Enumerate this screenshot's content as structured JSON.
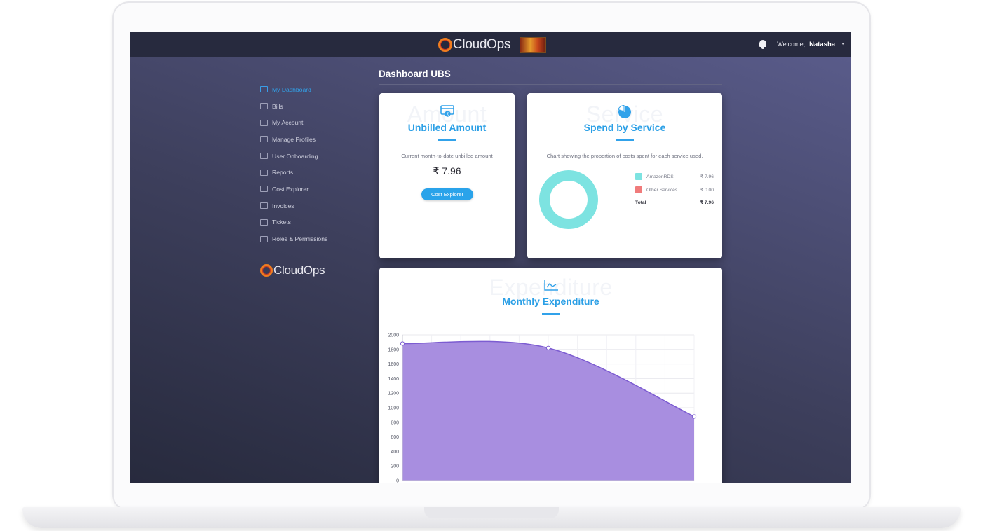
{
  "header": {
    "brand": "CloudOps",
    "welcome_prefix": "Welcome,",
    "user_name": "Natasha"
  },
  "sidebar": {
    "items": [
      {
        "label": "My Dashboard",
        "icon": "dashboard-icon",
        "active": true
      },
      {
        "label": "Bills",
        "icon": "bills-icon"
      },
      {
        "label": "My Account",
        "icon": "user-icon"
      },
      {
        "label": "Manage Profiles",
        "icon": "profiles-icon"
      },
      {
        "label": "User Onboarding",
        "icon": "onboarding-icon"
      },
      {
        "label": "Reports",
        "icon": "reports-icon"
      },
      {
        "label": "Cost Explorer",
        "icon": "trend-icon"
      },
      {
        "label": "Invoices",
        "icon": "invoice-icon"
      },
      {
        "label": "Tickets",
        "icon": "ticket-icon"
      },
      {
        "label": "Roles & Permissions",
        "icon": "link-icon"
      }
    ],
    "brand": "CloudOps"
  },
  "page": {
    "title": "Dashboard UBS"
  },
  "unbilled_card": {
    "ghost": "Amount",
    "title": "Unbilled Amount",
    "subtitle": "Current month-to-date unbilled amount",
    "amount": "₹ 7.96",
    "button": "Cost Explorer"
  },
  "service_card": {
    "ghost": "Service",
    "title": "Spend by Service",
    "subtitle": "Chart showing the proportion of costs spent for each service used.",
    "legend": [
      {
        "name": "AmazonRDS",
        "value": "₹ 7.96",
        "color": "#7de3e1"
      },
      {
        "name": "Other Services",
        "value": "₹ 0.00",
        "color": "#f07b7b"
      }
    ],
    "total_label": "Total",
    "total_value": "₹ 7.96"
  },
  "expenditure_card": {
    "ghost": "Expenditure",
    "title": "Monthly Expenditure"
  },
  "chart_data": [
    {
      "type": "pie",
      "categories": [
        "AmazonRDS",
        "Other Services"
      ],
      "values": [
        7.96,
        0.0
      ],
      "colors": [
        "#7de3e1",
        "#f07b7b"
      ],
      "title": "Spend by Service"
    },
    {
      "type": "area",
      "title": "Monthly Expenditure",
      "x": [
        0,
        1,
        2
      ],
      "values": [
        1880,
        1820,
        880
      ],
      "ylim": [
        0,
        2000
      ],
      "yticks": [
        0,
        200,
        400,
        600,
        800,
        1000,
        1200,
        1400,
        1600,
        1800,
        2000
      ],
      "fill_color": "#a88ee0",
      "line_color": "#7c5cd1",
      "grid": true
    }
  ]
}
